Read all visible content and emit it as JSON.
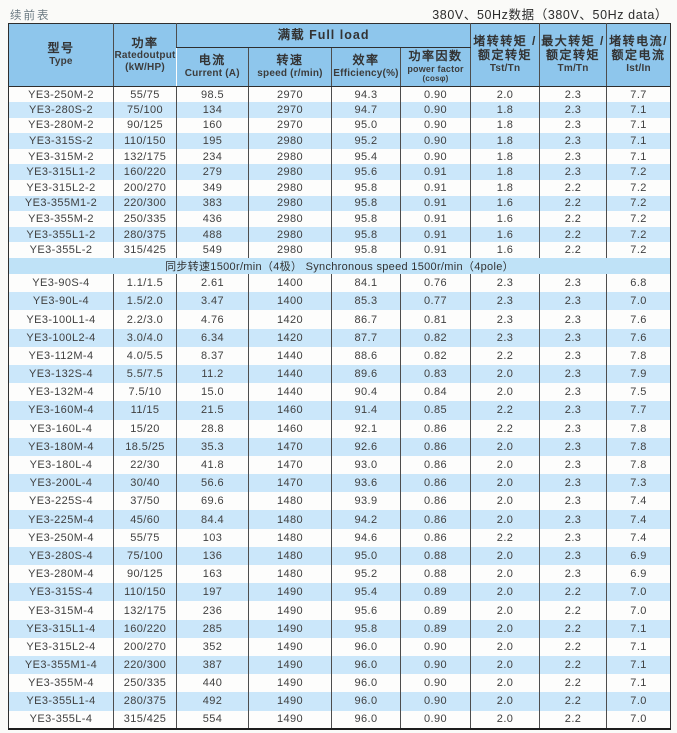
{
  "page": {
    "continued_label": "续前表",
    "voltage_note": "380V、50Hz数据（380V、50Hz data）"
  },
  "table": {
    "headers": {
      "type": "型号\nType",
      "rated_output": "功率\nRatedoutput\n(kW/HP)",
      "full_load_group": "满载 Full load",
      "current": "电流\nCurrent (A)",
      "speed": "转速\nspeed (r/min)",
      "efficiency": "效率\nEfficiency(%)",
      "power_factor": "功率因数\npower factor\n(cosφ)",
      "locked_rotor_torque": "堵转转矩 /\n额定转矩\nTst/Tn",
      "max_torque": "最大转矩 /\n额定转矩\nTm/Tn",
      "locked_rotor_current": "堵转电流/\n额定电流\nIst/In"
    },
    "sections": [
      {
        "separator": null,
        "rows": [
          [
            "YE3-250M-2",
            "55/75",
            "98.5",
            "2970",
            "94.3",
            "0.90",
            "2.0",
            "2.3",
            "7.7"
          ],
          [
            "YE3-280S-2",
            "75/100",
            "134",
            "2970",
            "94.7",
            "0.90",
            "1.8",
            "2.3",
            "7.1"
          ],
          [
            "YE3-280M-2",
            "90/125",
            "160",
            "2970",
            "95.0",
            "0.90",
            "1.8",
            "2.3",
            "7.1"
          ],
          [
            "YE3-315S-2",
            "110/150",
            "195",
            "2980",
            "95.2",
            "0.90",
            "1.8",
            "2.3",
            "7.1"
          ],
          [
            "YE3-315M-2",
            "132/175",
            "234",
            "2980",
            "95.4",
            "0.90",
            "1.8",
            "2.3",
            "7.1"
          ],
          [
            "YE3-315L1-2",
            "160/220",
            "279",
            "2980",
            "95.6",
            "0.91",
            "1.8",
            "2.3",
            "7.2"
          ],
          [
            "YE3-315L2-2",
            "200/270",
            "349",
            "2980",
            "95.8",
            "0.91",
            "1.8",
            "2.2",
            "7.2"
          ],
          [
            "YE3-355M1-2",
            "220/300",
            "383",
            "2980",
            "95.8",
            "0.91",
            "1.6",
            "2.2",
            "7.2"
          ],
          [
            "YE3-355M-2",
            "250/335",
            "436",
            "2980",
            "95.8",
            "0.91",
            "1.6",
            "2.2",
            "7.2"
          ],
          [
            "YE3-355L1-2",
            "280/375",
            "488",
            "2980",
            "95.8",
            "0.91",
            "1.6",
            "2.2",
            "7.2"
          ],
          [
            "YE3-355L-2",
            "315/425",
            "549",
            "2980",
            "95.8",
            "0.91",
            "1.6",
            "2.2",
            "7.2"
          ]
        ]
      },
      {
        "separator": "同步转速1500r/min（4极）  Synchronous speed 1500r/min（4pole）",
        "rows": [
          [
            "YE3-90S-4",
            "1.1/1.5",
            "2.61",
            "1400",
            "84.1",
            "0.76",
            "2.3",
            "2.3",
            "6.8"
          ],
          [
            "YE3-90L-4",
            "1.5/2.0",
            "3.47",
            "1400",
            "85.3",
            "0.77",
            "2.3",
            "2.3",
            "7.0"
          ],
          [
            "YE3-100L1-4",
            "2.2/3.0",
            "4.76",
            "1420",
            "86.7",
            "0.81",
            "2.3",
            "2.3",
            "7.6"
          ],
          [
            "YE3-100L2-4",
            "3.0/4.0",
            "6.34",
            "1420",
            "87.7",
            "0.82",
            "2.3",
            "2.3",
            "7.6"
          ],
          [
            "YE3-112M-4",
            "4.0/5.5",
            "8.37",
            "1440",
            "88.6",
            "0.82",
            "2.2",
            "2.3",
            "7.8"
          ],
          [
            "YE3-132S-4",
            "5.5/7.5",
            "11.2",
            "1440",
            "89.6",
            "0.83",
            "2.0",
            "2.3",
            "7.9"
          ],
          [
            "YE3-132M-4",
            "7.5/10",
            "15.0",
            "1440",
            "90.4",
            "0.84",
            "2.0",
            "2.3",
            "7.5"
          ],
          [
            "YE3-160M-4",
            "11/15",
            "21.5",
            "1460",
            "91.4",
            "0.85",
            "2.2",
            "2.3",
            "7.7"
          ],
          [
            "YE3-160L-4",
            "15/20",
            "28.8",
            "1460",
            "92.1",
            "0.86",
            "2.2",
            "2.3",
            "7.8"
          ],
          [
            "YE3-180M-4",
            "18.5/25",
            "35.3",
            "1470",
            "92.6",
            "0.86",
            "2.0",
            "2.3",
            "7.8"
          ],
          [
            "YE3-180L-4",
            "22/30",
            "41.8",
            "1470",
            "93.0",
            "0.86",
            "2.0",
            "2.3",
            "7.8"
          ],
          [
            "YE3-200L-4",
            "30/40",
            "56.6",
            "1470",
            "93.6",
            "0.86",
            "2.0",
            "2.3",
            "7.3"
          ],
          [
            "YE3-225S-4",
            "37/50",
            "69.6",
            "1480",
            "93.9",
            "0.86",
            "2.0",
            "2.3",
            "7.4"
          ],
          [
            "YE3-225M-4",
            "45/60",
            "84.4",
            "1480",
            "94.2",
            "0.86",
            "2.0",
            "2.3",
            "7.4"
          ],
          [
            "YE3-250M-4",
            "55/75",
            "103",
            "1480",
            "94.6",
            "0.86",
            "2.2",
            "2.3",
            "7.4"
          ],
          [
            "YE3-280S-4",
            "75/100",
            "136",
            "1480",
            "95.0",
            "0.88",
            "2.0",
            "2.3",
            "6.9"
          ],
          [
            "YE3-280M-4",
            "90/125",
            "163",
            "1480",
            "95.2",
            "0.88",
            "2.0",
            "2.3",
            "6.9"
          ],
          [
            "YE3-315S-4",
            "110/150",
            "197",
            "1490",
            "95.4",
            "0.89",
            "2.0",
            "2.2",
            "7.0"
          ],
          [
            "YE3-315M-4",
            "132/175",
            "236",
            "1490",
            "95.6",
            "0.89",
            "2.0",
            "2.2",
            "7.0"
          ],
          [
            "YE3-315L1-4",
            "160/220",
            "285",
            "1490",
            "95.8",
            "0.89",
            "2.0",
            "2.2",
            "7.1"
          ],
          [
            "YE3-315L2-4",
            "200/270",
            "352",
            "1490",
            "96.0",
            "0.90",
            "2.0",
            "2.2",
            "7.1"
          ],
          [
            "YE3-355M1-4",
            "220/300",
            "387",
            "1490",
            "96.0",
            "0.90",
            "2.0",
            "2.2",
            "7.1"
          ],
          [
            "YE3-355M-4",
            "250/335",
            "440",
            "1490",
            "96.0",
            "0.90",
            "2.0",
            "2.2",
            "7.1"
          ],
          [
            "YE3-355L1-4",
            "280/375",
            "492",
            "1490",
            "96.0",
            "0.90",
            "2.0",
            "2.2",
            "7.0"
          ],
          [
            "YE3-355L-4",
            "315/425",
            "554",
            "1490",
            "96.0",
            "0.90",
            "2.0",
            "2.2",
            "7.0"
          ]
        ]
      }
    ]
  },
  "colors": {
    "header_bg": "#8ec6ec",
    "stripe_bg": "#cbe7fa",
    "separator_bg": "#bfe2f7"
  }
}
